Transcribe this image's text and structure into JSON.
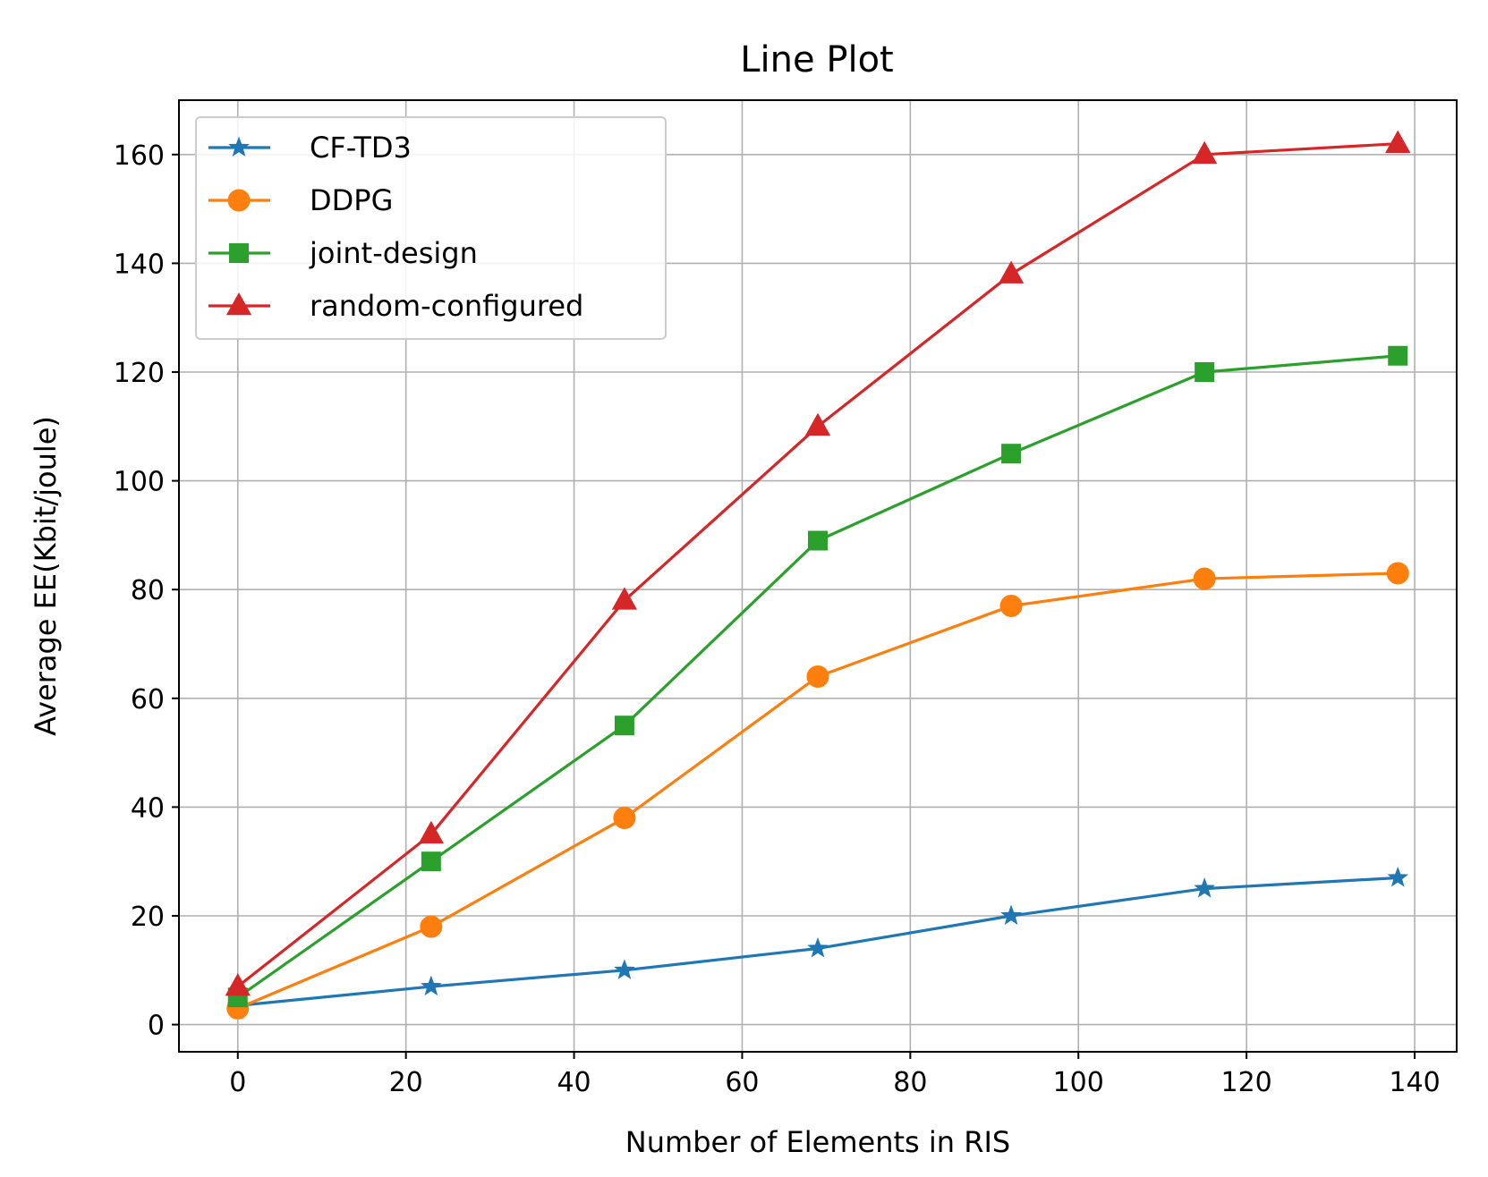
{
  "chart_data": {
    "type": "line",
    "title": "Line Plot",
    "xlabel": "Number of Elements in RIS",
    "ylabel": "Average EE(Kbit/joule)",
    "xlim": [
      -7,
      145
    ],
    "ylim": [
      -5,
      170
    ],
    "xticks": [
      0,
      20,
      40,
      60,
      80,
      100,
      120,
      140
    ],
    "yticks": [
      0,
      20,
      40,
      60,
      80,
      100,
      120,
      140,
      160
    ],
    "grid": true,
    "legend_position": "top-left",
    "x": [
      0,
      23,
      46,
      69,
      92,
      115,
      138
    ],
    "series": [
      {
        "name": "CF-TD3",
        "color": "#1f77b4",
        "marker": "star",
        "values": [
          3.5,
          7,
          10,
          14,
          20,
          25,
          27
        ]
      },
      {
        "name": "DDPG",
        "color": "#ff7f0e",
        "marker": "circle",
        "values": [
          3,
          18,
          38,
          64,
          77,
          82,
          83
        ]
      },
      {
        "name": "joint-design",
        "color": "#2ca02c",
        "marker": "square",
        "values": [
          5,
          30,
          55,
          89,
          105,
          120,
          123
        ]
      },
      {
        "name": "random-configured",
        "color": "#d62728",
        "marker": "triangle",
        "values": [
          7,
          35,
          78,
          110,
          138,
          160,
          162
        ]
      }
    ]
  }
}
